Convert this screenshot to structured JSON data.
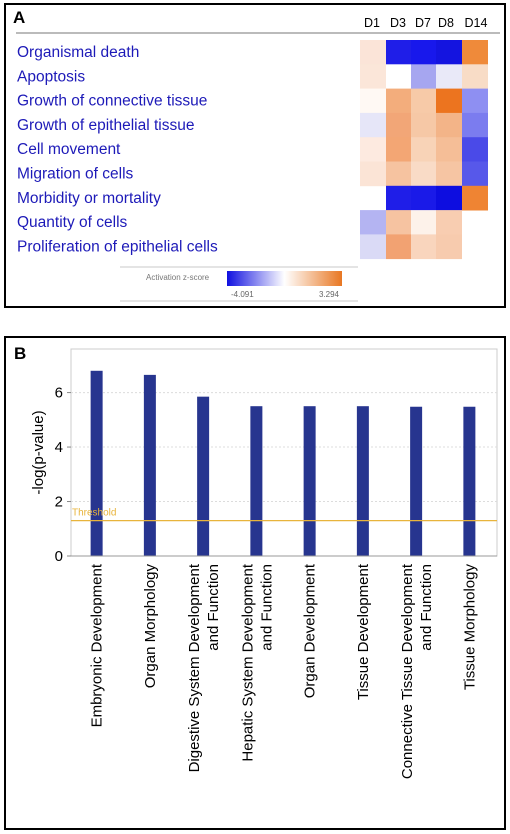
{
  "panel_a": {
    "letter": "A",
    "columns": [
      "D1",
      "D3",
      "D7",
      "D8",
      "D14"
    ],
    "rows": [
      "Organismal death",
      "Apoptosis",
      "Growth of connective tissue",
      "Growth of epithelial tissue",
      "Cell movement",
      "Migration of cells",
      "Morbidity or mortality",
      "Quantity of cells",
      "Proliferation of epithelial cells"
    ],
    "cell_colors": [
      [
        "#fbe4d8",
        "#1f1ee8",
        "#1818ec",
        "#1414e0",
        "#ef8a3a"
      ],
      [
        "#fbe6d9",
        "#ffffff",
        "#a6a6f0",
        "#e9e9f8",
        "#f8dcc6"
      ],
      [
        "#fff9f4",
        "#f3ad7c",
        "#f7caa8",
        "#ec741f",
        "#8e8ff2"
      ],
      [
        "#e6e6f8",
        "#f2a677",
        "#f6c8a6",
        "#f3b488",
        "#7b7cef"
      ],
      [
        "#fdeae0",
        "#f3a674",
        "#f8d3b7",
        "#f5be97",
        "#4a4ae8"
      ],
      [
        "#fbe4d6",
        "#f6c3a0",
        "#f9dbc6",
        "#f6c5a3",
        "#5758ea"
      ],
      [
        "",
        "#1f1ee8",
        "#1a1ae8",
        "#0d0de0",
        "#ef8433"
      ],
      [
        "#b4b4f2",
        "#f6c3a1",
        "#fdf2ea",
        "#f8cdb1",
        ""
      ],
      [
        "#dadaf6",
        "#f2a272",
        "#f9d5bd",
        "#f7cbae",
        ""
      ]
    ],
    "legend": {
      "label": "Activation z-score",
      "min_label": "-4.091",
      "max_label": "3.294",
      "color_low": "#1010e0",
      "color_high": "#e87722"
    }
  },
  "panel_b": {
    "letter": "B",
    "threshold_label": "Threshold"
  },
  "chart_data": {
    "type": "bar",
    "categories": [
      "Embryonic Development",
      "Organ Morphology",
      "Digestive System Development and Function",
      "Hepatic System Development and Function",
      "Organ Development",
      "Tissue Development",
      "Connective Tissue Development and Function",
      "Tissue Morphology"
    ],
    "category_lines": [
      [
        "Embryonic Development"
      ],
      [
        "Organ Morphology"
      ],
      [
        "Digestive System Development",
        "and Function"
      ],
      [
        "Hepatic System Development",
        "and Function"
      ],
      [
        "Organ Development"
      ],
      [
        "Tissue Development"
      ],
      [
        "Connective Tissue Development",
        "and Function"
      ],
      [
        "Tissue Morphology"
      ]
    ],
    "values": [
      6.8,
      6.65,
      5.85,
      5.5,
      5.5,
      5.5,
      5.48,
      5.48
    ],
    "ylabel": "-log(p-value)",
    "ylim": [
      0,
      7.6
    ],
    "yticks": [
      0,
      2,
      4,
      6
    ],
    "threshold": 1.3,
    "bar_color": "#27358f",
    "threshold_color": "#e8b43c",
    "grid": true
  }
}
